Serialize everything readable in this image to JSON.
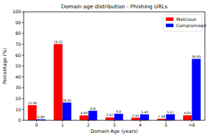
{
  "chart_data": {
    "type": "bar",
    "title": "Domain age distribution - Phishing URLs",
    "x_label": "Domain Age (years)",
    "y_label": "Percentage (%)",
    "categories": [
      "0",
      "1",
      "2",
      "3",
      "4",
      "5",
      ">6"
    ],
    "series": [
      {
        "name": "Malicious",
        "color": "#ff0000",
        "values": [
          13.99,
          70.32,
          4.49,
          2.67,
          2.41,
          1.48,
          4.65
        ]
      },
      {
        "name": "Compromised",
        "color": "#0000ff",
        "values": [
          0.89,
          16.41,
          8.8,
          6.0,
          5.49,
          5.57,
          56.65
        ],
        "value_labels": [
          "0.89",
          "16.41",
          "8.8",
          "6.0",
          "5.49",
          "5.57",
          "56.65"
        ]
      }
    ],
    "ylim": [
      0,
      100
    ],
    "yticks": [
      0,
      10,
      20,
      30,
      40,
      50,
      60,
      70,
      80,
      90,
      100
    ],
    "legend": "upper right",
    "data_labels": true,
    "grid": false
  }
}
